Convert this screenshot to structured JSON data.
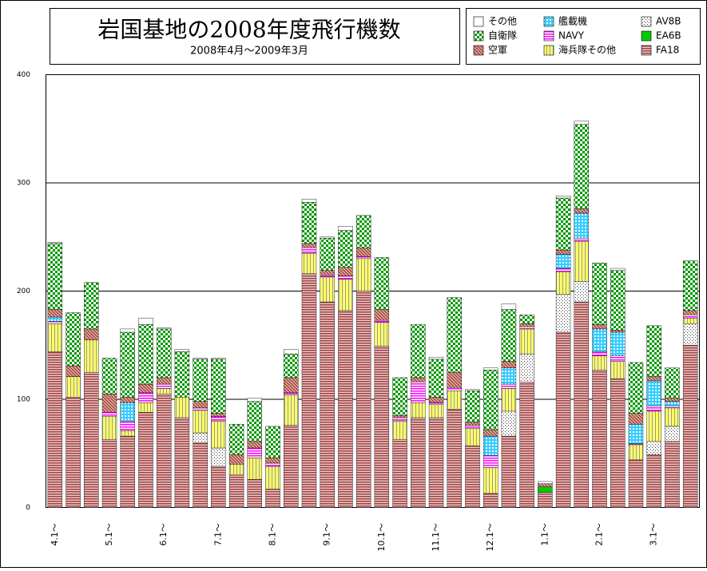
{
  "chart_data": {
    "type": "stacked_bar",
    "title": "岩国基地の2008年度飛行機数",
    "subtitle": "2008年4月～2009年3月",
    "categories": [
      "4.1～",
      null,
      null,
      "5.1～",
      null,
      null,
      "6.1～",
      null,
      null,
      "7.1～",
      null,
      null,
      "8.1～",
      null,
      null,
      "9.1～",
      null,
      null,
      "10.1～",
      null,
      null,
      "11.1～",
      null,
      null,
      "12.1～",
      null,
      null,
      "1.1～",
      null,
      null,
      "2.1～",
      null,
      null,
      "3.1～",
      null,
      null
    ],
    "series": [
      {
        "name": "FA18",
        "color": "#a04040",
        "values": [
          144,
          102,
          125,
          63,
          66,
          88,
          105,
          83,
          60,
          38,
          30,
          26,
          17,
          76,
          216,
          190,
          182,
          200,
          149,
          63,
          83,
          83,
          91,
          57,
          13,
          66,
          116,
          14,
          162,
          190,
          127,
          119,
          44,
          49,
          61,
          150
        ]
      },
      {
        "name": "AV8B",
        "color": "#404040",
        "values": [
          0,
          0,
          0,
          0,
          0,
          0,
          0,
          0,
          9,
          17,
          0,
          0,
          0,
          0,
          0,
          0,
          0,
          0,
          0,
          0,
          0,
          0,
          0,
          0,
          0,
          23,
          26,
          0,
          35,
          19,
          0,
          0,
          0,
          12,
          14,
          20
        ]
      },
      {
        "name": "EA6B",
        "color": "#00cc00",
        "values": [
          0,
          0,
          0,
          0,
          0,
          0,
          0,
          0,
          0,
          0,
          0,
          0,
          0,
          0,
          0,
          0,
          0,
          0,
          0,
          0,
          0,
          0,
          0,
          0,
          0,
          0,
          0,
          5,
          0,
          0,
          0,
          0,
          0,
          0,
          0,
          0
        ]
      },
      {
        "name": "海兵隊その他",
        "color": "#ffff66",
        "values": [
          26,
          19,
          30,
          21,
          5,
          9,
          5,
          19,
          21,
          25,
          10,
          20,
          21,
          28,
          19,
          23,
          29,
          30,
          22,
          17,
          14,
          12,
          17,
          16,
          24,
          21,
          23,
          0,
          21,
          37,
          13,
          16,
          14,
          28,
          17,
          5
        ]
      },
      {
        "name": "NAVY",
        "color": "#ff00ff",
        "values": [
          2,
          0,
          0,
          4,
          9,
          9,
          4,
          0,
          2,
          4,
          0,
          9,
          3,
          2,
          5,
          2,
          3,
          2,
          2,
          3,
          19,
          2,
          3,
          3,
          11,
          4,
          2,
          0,
          3,
          3,
          4,
          5,
          1,
          5,
          2,
          3
        ]
      },
      {
        "name": "艦載機",
        "color": "#33ccff",
        "values": [
          4,
          0,
          0,
          0,
          17,
          0,
          0,
          0,
          0,
          0,
          0,
          0,
          0,
          0,
          0,
          0,
          0,
          0,
          0,
          0,
          0,
          0,
          0,
          0,
          18,
          15,
          0,
          0,
          13,
          23,
          21,
          22,
          18,
          23,
          4,
          0
        ]
      },
      {
        "name": "空軍",
        "color": "#993333",
        "values": [
          7,
          10,
          10,
          17,
          5,
          8,
          6,
          0,
          6,
          3,
          9,
          6,
          5,
          14,
          4,
          4,
          8,
          8,
          10,
          2,
          4,
          5,
          14,
          3,
          6,
          6,
          3,
          3,
          4,
          4,
          4,
          2,
          10,
          4,
          3,
          4
        ]
      },
      {
        "name": "自衛隊",
        "color": "#009900",
        "values": [
          61,
          49,
          43,
          33,
          60,
          55,
          45,
          42,
          39,
          50,
          28,
          37,
          29,
          22,
          38,
          30,
          34,
          30,
          48,
          35,
          49,
          35,
          69,
          29,
          55,
          48,
          8,
          0,
          48,
          78,
          57,
          55,
          47,
          47,
          28,
          46
        ]
      },
      {
        "name": "その他",
        "color": "#ffffff",
        "values": [
          1,
          0,
          0,
          0,
          3,
          6,
          1,
          2,
          1,
          1,
          0,
          3,
          0,
          4,
          3,
          1,
          4,
          0,
          0,
          0,
          0,
          2,
          0,
          1,
          2,
          5,
          0,
          2,
          2,
          3,
          0,
          2,
          0,
          0,
          0,
          0
        ]
      }
    ],
    "ylim": [
      0,
      400
    ],
    "yticks": [
      0,
      100,
      200,
      300,
      400
    ],
    "grid": true
  }
}
